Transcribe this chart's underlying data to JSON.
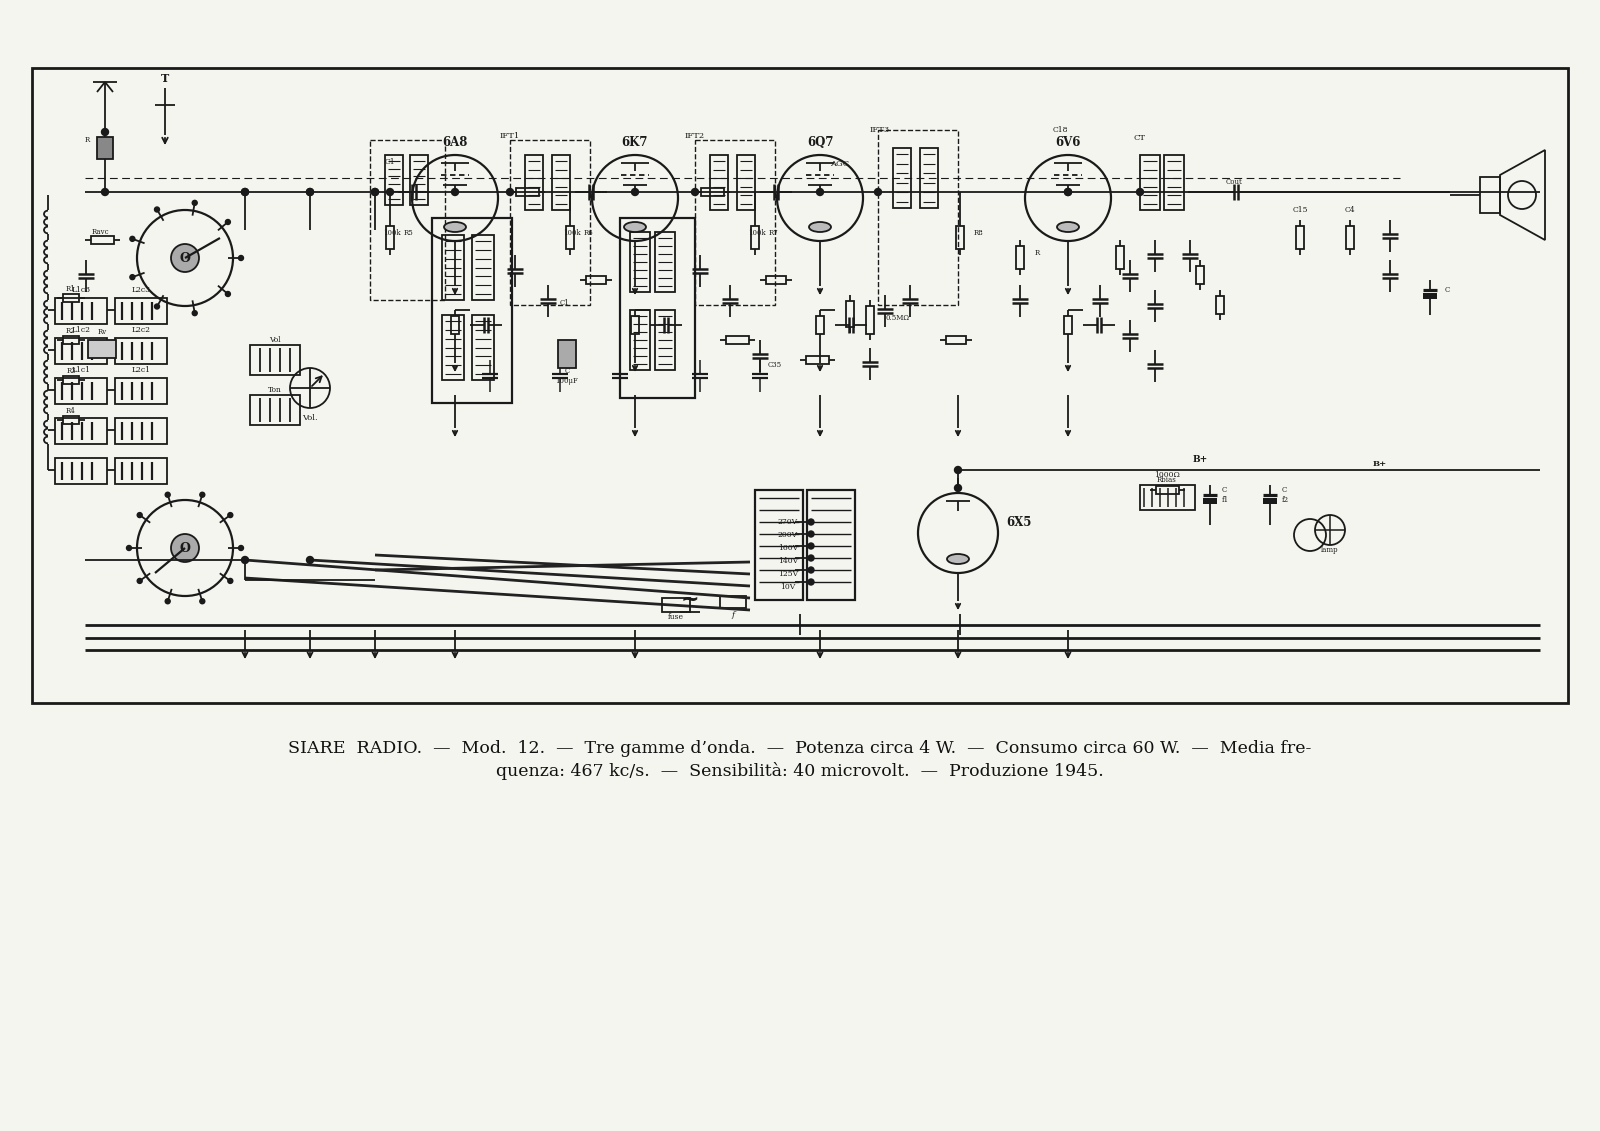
{
  "background_color": "#f5f5f0",
  "caption_line1": "SIARE  RADIO.  —  Mod.  12.  —  Tre gamme d’onda.  —  Potenza circa 4 W.  —  Consumo circa 60 W.  —  Media fre-",
  "caption_line2": "quenza: 467 kc/s.  —  Sensibilità: 40 microvolt.  —  Produzione 1945.",
  "caption_fontsize": 12.5,
  "caption_fontfamily": "serif",
  "caption_color": "#111111",
  "line_color": "#1a1a1a",
  "fig_width": 16.0,
  "fig_height": 11.31,
  "dpi": 100,
  "tube_labels": [
    "6A8",
    "6K7",
    "6Q7",
    "6V6",
    "6X5"
  ]
}
